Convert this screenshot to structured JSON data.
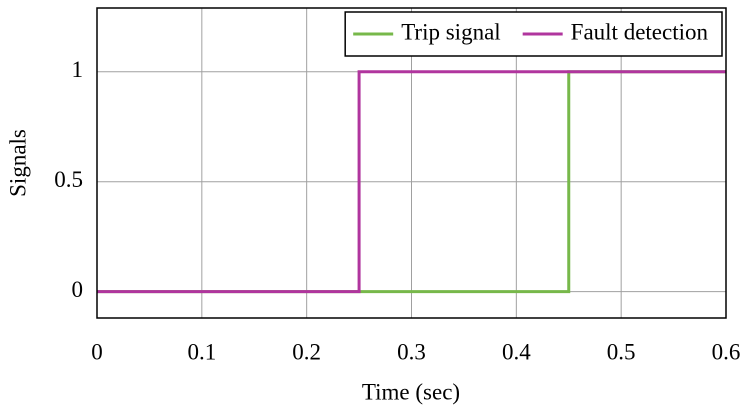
{
  "chart_data": {
    "type": "line",
    "xlabel": "Time (sec)",
    "ylabel": "Signals",
    "series": [
      {
        "name": "Trip signal",
        "color": "#77b84a",
        "x": [
          0,
          0.45,
          0.45,
          0.6
        ],
        "values": [
          0,
          0,
          1,
          1
        ]
      },
      {
        "name": "Fault detection",
        "color": "#b0359e",
        "x": [
          0,
          0.25,
          0.25,
          0.6
        ],
        "values": [
          0,
          0,
          1,
          1
        ]
      }
    ],
    "xlim": [
      0,
      0.6
    ],
    "xticks": [
      0,
      0.1,
      0.2,
      0.3,
      0.4,
      0.5,
      0.6
    ],
    "ylim": [
      -0.12,
      1.29
    ],
    "yticks": [
      0,
      0.5,
      1
    ],
    "grid": true,
    "legend": "upper right"
  }
}
